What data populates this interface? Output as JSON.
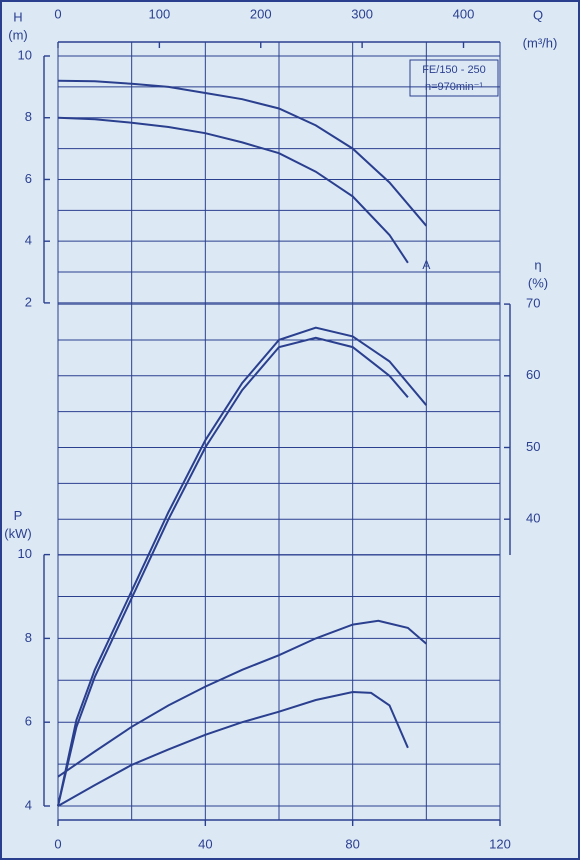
{
  "chart_data": [
    {
      "type": "line",
      "y_label": "H",
      "y_unit": "(m)",
      "y_side": "left",
      "x2_label": "Q",
      "x2_unit": "(m³/h)",
      "x2lim": [
        0,
        436
      ],
      "x2ticks": [
        0,
        100,
        200,
        300,
        400
      ],
      "annotations": [
        "FE/150 - 250",
        "n=970min⁻¹"
      ],
      "curve_label": "A",
      "xlim": [
        0,
        120
      ],
      "xgrid": [
        0,
        20,
        40,
        60,
        80,
        100,
        120
      ],
      "ylim": [
        -14.3,
        10
      ],
      "yticks": [
        2,
        4,
        6,
        8,
        10
      ],
      "ygrid": [
        2,
        3,
        4,
        5,
        6,
        7,
        8,
        9,
        10
      ],
      "series": [
        {
          "color": "#2b3f8f",
          "x": [
            0,
            10,
            20,
            30,
            40,
            50,
            60,
            70,
            80,
            90,
            100
          ],
          "values": [
            9.2,
            9.18,
            9.1,
            9.0,
            8.8,
            8.6,
            8.3,
            7.75,
            7.0,
            5.9,
            4.5
          ]
        },
        {
          "color": "#2b3f8f",
          "x": [
            0,
            10,
            20,
            30,
            40,
            50,
            60,
            70,
            80,
            90,
            95
          ],
          "values": [
            8.0,
            7.95,
            7.84,
            7.7,
            7.5,
            7.2,
            6.85,
            6.25,
            5.45,
            4.2,
            3.3
          ]
        }
      ]
    },
    {
      "type": "line",
      "y_label": "η",
      "y_unit": "(%)",
      "y_side": "right",
      "xlim": [
        0,
        120
      ],
      "ylim": [
        0,
        104.6
      ],
      "yticks": [
        40,
        50,
        60,
        70
      ],
      "ygrid": [
        35,
        40,
        45,
        50,
        55,
        60,
        65,
        70
      ],
      "series": [
        {
          "color": "#2b3f8f",
          "x": [
            0,
            5,
            10,
            20,
            30,
            40,
            50,
            60,
            70,
            80,
            90,
            100
          ],
          "values": [
            0,
            12,
            19,
            30,
            41,
            51,
            59,
            65,
            66.7,
            65.5,
            62,
            55.9
          ]
        },
        {
          "color": "#2b3f8f",
          "x": [
            0,
            5,
            10,
            20,
            30,
            40,
            50,
            60,
            70,
            80,
            90,
            95
          ],
          "values": [
            0,
            11,
            18,
            29,
            40,
            50,
            58,
            64,
            65.3,
            64,
            60,
            57
          ]
        }
      ]
    },
    {
      "type": "line",
      "y_label": "P",
      "y_unit": "(kW)",
      "y_side": "left",
      "xlim": [
        0,
        120
      ],
      "xticks": [
        0,
        40,
        80,
        120
      ],
      "ylim": [
        4,
        21.9
      ],
      "yticks": [
        4,
        6,
        8,
        10
      ],
      "ygrid": [
        4,
        5,
        6,
        7,
        8,
        9,
        10
      ],
      "series": [
        {
          "color": "#2b3f8f",
          "x": [
            0,
            10,
            20,
            30,
            40,
            50,
            60,
            70,
            80,
            87,
            95,
            100
          ],
          "values": [
            4.7,
            5.3,
            5.89,
            6.4,
            6.85,
            7.25,
            7.6,
            8.0,
            8.33,
            8.42,
            8.25,
            7.87
          ]
        },
        {
          "color": "#2b3f8f",
          "x": [
            0,
            10,
            20,
            30,
            40,
            50,
            60,
            70,
            80,
            85,
            90,
            95
          ],
          "values": [
            4.0,
            4.5,
            4.98,
            5.35,
            5.7,
            6.0,
            6.25,
            6.53,
            6.72,
            6.7,
            6.4,
            5.39
          ]
        }
      ]
    }
  ]
}
